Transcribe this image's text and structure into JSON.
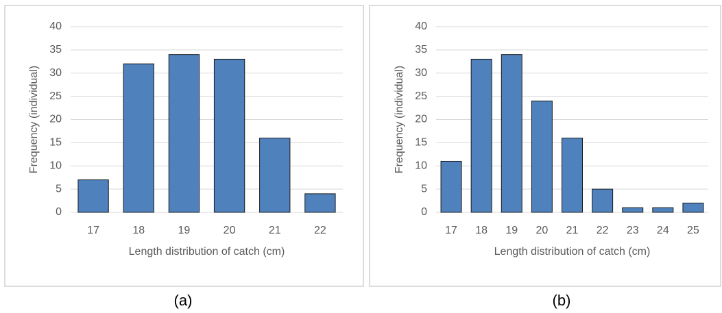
{
  "chart_data": [
    {
      "type": "bar",
      "caption": "(a)",
      "x_label": "Length distribution of catch (cm)",
      "y_label": "Frequency (individual)",
      "categories": [
        "17",
        "18",
        "19",
        "20",
        "21",
        "22"
      ],
      "values": [
        7,
        32,
        34,
        33,
        16,
        4
      ],
      "color": "#4f81bd",
      "ylim": [
        0,
        40
      ],
      "yticks": [
        0,
        5,
        10,
        15,
        20,
        25,
        30,
        35,
        40
      ],
      "grid": true
    },
    {
      "type": "bar",
      "caption": "(b)",
      "x_label": "Length distribution of catch (cm)",
      "y_label": "Frequency (individual)",
      "categories": [
        "17",
        "18",
        "19",
        "20",
        "21",
        "22",
        "23",
        "24",
        "25"
      ],
      "values": [
        11,
        33,
        34,
        24,
        16,
        5,
        1,
        1,
        2
      ],
      "color": "#4f81bd",
      "ylim": [
        0,
        40
      ],
      "yticks": [
        0,
        5,
        10,
        15,
        20,
        25,
        30,
        35,
        40
      ],
      "grid": true
    }
  ]
}
